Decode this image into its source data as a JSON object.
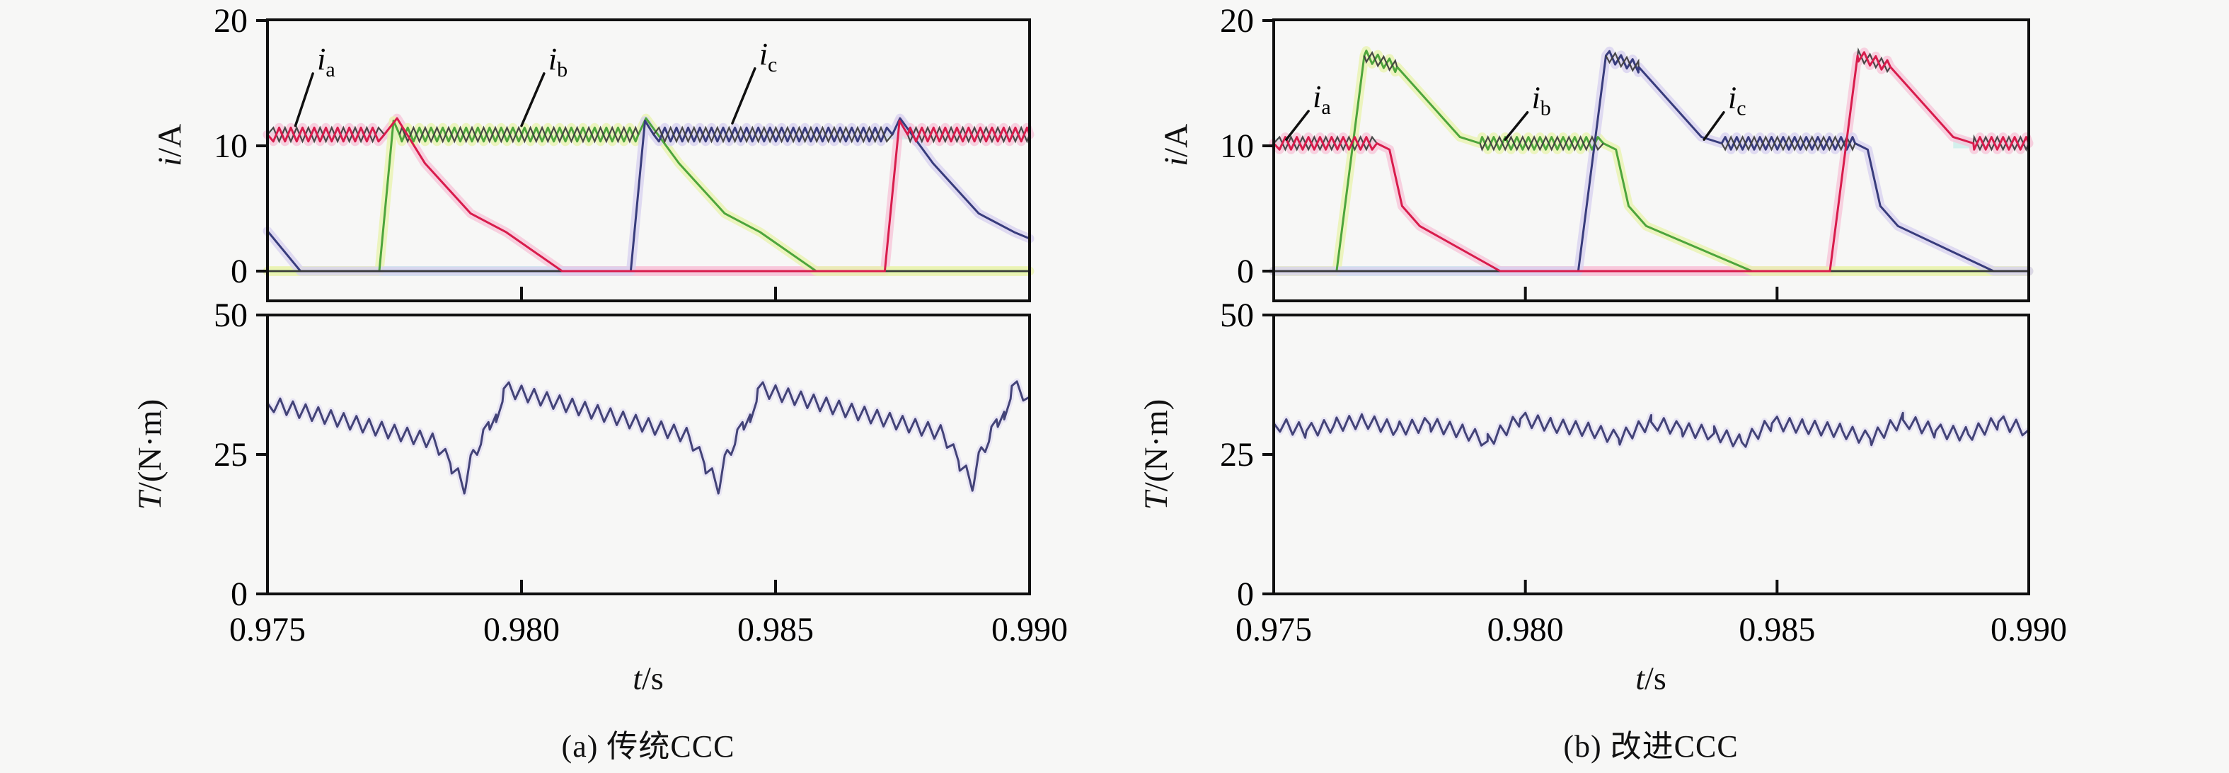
{
  "chart_data": {
    "type": "line",
    "xlim": [
      0.975,
      0.99
    ],
    "palette": {
      "red": "#d81c4c",
      "green": "#4da53c",
      "navy": "#383c7c",
      "torque": "#434378",
      "twin": "#3e3e3e",
      "zero": "#3b3b3b",
      "cyan": "#cdeeea",
      "yellow": "#eef3b8",
      "pink": "#f8c9dc",
      "lavender": "#dcd6f2",
      "halo_red": "#f6c6da",
      "halo_green": "#e9f2b0",
      "halo_navy": "#d8d2f0"
    },
    "panels": [
      {
        "caption": "(a) 传统CCC",
        "xlabel": {
          "var": "t",
          "unit": "/s"
        },
        "xticks": {
          "values": [
            0.975,
            0.98,
            0.985,
            0.99
          ],
          "labels": [
            "0.975",
            "0.980",
            "0.985",
            "0.990"
          ]
        },
        "current_plot": {
          "ylabel": {
            "var": "i",
            "unit": "/A"
          },
          "ylim": [
            -2.4,
            20.1
          ],
          "yticks": [
            {
              "v": 0,
              "label": "0"
            },
            {
              "v": 10,
              "label": "10"
            },
            {
              "v": 20,
              "label": "20"
            }
          ],
          "ripple_period": 0.00023,
          "bands": [
            {
              "t0": 0.975,
              "t1": 0.978,
              "level": 10.9,
              "color": "cyan"
            },
            {
              "t0": 0.9871,
              "t1": 0.99,
              "level": 10.9,
              "color": "cyan"
            },
            {
              "t0": 0.9757,
              "t1": 0.98215,
              "level": 0,
              "color": "cyan"
            },
            {
              "t0": 0.9808,
              "t1": 0.98715,
              "level": 0,
              "color": "pink"
            },
            {
              "t0": 0.975,
              "t1": 0.9772,
              "level": 0,
              "color": "yellow"
            },
            {
              "t0": 0.9858,
              "t1": 0.99,
              "level": 0,
              "color": "yellow"
            }
          ],
          "phases": [
            {
              "name": "ia",
              "color": "red",
              "front": true,
              "label": {
                "var": "i",
                "sub": "a",
                "tx": 0.9762,
                "ty": 16.9,
                "ax": 0.97555,
                "ay": 11.6
              },
              "points": [
                [
                  0.975,
                  10.9
                ],
                [
                  0.9773,
                  10.9
                ],
                [
                  0.97755,
                  12.2
                ],
                [
                  0.9781,
                  8.6
                ],
                [
                  0.979,
                  4.6
                ],
                [
                  0.9797,
                  3.1
                ],
                [
                  0.9808,
                  0
                ],
                [
                  0.98715,
                  0
                ],
                [
                  0.98744,
                  12.0
                ],
                [
                  0.9876,
                  10.9
                ],
                [
                  0.99,
                  10.9
                ]
              ],
              "ripple_spans": [
                [
                  0.975,
                  0.9773,
                  0.55
                ],
                [
                  0.9876,
                  0.99,
                  0.55
                ]
              ]
            },
            {
              "name": "ib",
              "color": "green",
              "label": {
                "var": "i",
                "sub": "b",
                "tx": 0.98075,
                "ty": 16.9,
                "ax": 0.98,
                "ay": 11.6
              },
              "points": [
                [
                  0.975,
                  0
                ],
                [
                  0.9772,
                  0
                ],
                [
                  0.97748,
                  12.0
                ],
                [
                  0.9776,
                  10.9
                ],
                [
                  0.9823,
                  10.9
                ],
                [
                  0.98245,
                  12.2
                ],
                [
                  0.9831,
                  8.6
                ],
                [
                  0.984,
                  4.6
                ],
                [
                  0.9847,
                  3.1
                ],
                [
                  0.9858,
                  0
                ],
                [
                  0.99,
                  0
                ]
              ],
              "ripple_spans": [
                [
                  0.9776,
                  0.9823,
                  0.55
                ]
              ]
            },
            {
              "name": "ic",
              "color": "navy",
              "label": {
                "var": "i",
                "sub": "c",
                "tx": 0.9849,
                "ty": 17.3,
                "ax": 0.98415,
                "ay": 11.8
              },
              "points": [
                [
                  0.975,
                  3.2
                ],
                [
                  0.97565,
                  0
                ],
                [
                  0.98215,
                  0
                ],
                [
                  0.98243,
                  12.0
                ],
                [
                  0.9826,
                  10.9
                ],
                [
                  0.9873,
                  10.9
                ],
                [
                  0.98745,
                  12.2
                ],
                [
                  0.9881,
                  8.6
                ],
                [
                  0.989,
                  4.6
                ],
                [
                  0.9897,
                  3.1
                ],
                [
                  0.99,
                  2.6
                ]
              ],
              "ripple_spans": [
                [
                  0.9826,
                  0.9873,
                  0.55
                ]
              ]
            }
          ]
        },
        "torque_plot": {
          "ylabel": {
            "var": "T",
            "unit": "/(N·m)"
          },
          "ylim": [
            0,
            50
          ],
          "yticks": [
            {
              "v": 0,
              "label": "0"
            },
            {
              "v": 25,
              "label": "25"
            },
            {
              "v": 50,
              "label": "50"
            }
          ],
          "color": "torque",
          "halo": "lavender",
          "ripple_period": 0.00025,
          "points": [
            [
              0.975,
              34.2
            ],
            [
              0.9783,
              27.3
            ],
            [
              0.9786,
              23.3
            ],
            [
              0.9789,
              19.0
            ],
            [
              0.97905,
              25.8
            ],
            [
              0.9792,
              26.8
            ],
            [
              0.97935,
              30.8
            ],
            [
              0.9795,
              30.8
            ],
            [
              0.97965,
              36.8
            ],
            [
              0.9833,
              28.3
            ],
            [
              0.9836,
              23.3
            ],
            [
              0.9839,
              19.0
            ],
            [
              0.98405,
              25.8
            ],
            [
              0.9842,
              26.8
            ],
            [
              0.98435,
              30.8
            ],
            [
              0.9845,
              30.8
            ],
            [
              0.98465,
              36.8
            ],
            [
              0.9883,
              28.8
            ],
            [
              0.9886,
              23.8
            ],
            [
              0.9889,
              19.5
            ],
            [
              0.98905,
              26.3
            ],
            [
              0.9892,
              27.3
            ],
            [
              0.98935,
              31.3
            ],
            [
              0.9895,
              31.3
            ],
            [
              0.98965,
              37.3
            ],
            [
              0.99,
              35.3
            ]
          ],
          "ripple_spans": [
            [
              0.975,
              0.99,
              1.35
            ]
          ]
        }
      },
      {
        "caption": "(b) 改进CCC",
        "xlabel": {
          "var": "t",
          "unit": "/s"
        },
        "xticks": {
          "values": [
            0.975,
            0.98,
            0.985,
            0.99
          ],
          "labels": [
            "0.975",
            "0.980",
            "0.985",
            "0.990"
          ]
        },
        "current_plot": {
          "ylabel": {
            "var": "i",
            "unit": "/A"
          },
          "ylim": [
            -2.4,
            20.1
          ],
          "yticks": [
            {
              "v": 0,
              "label": "0"
            },
            {
              "v": 10,
              "label": "10"
            },
            {
              "v": 20,
              "label": "20"
            }
          ],
          "ripple_period": 0.00023,
          "bands": [
            {
              "t0": 0.975,
              "t1": 0.977,
              "level": 10.2,
              "color": "cyan"
            },
            {
              "t0": 0.9885,
              "t1": 0.99,
              "level": 10.2,
              "color": "cyan"
            },
            {
              "t0": 0.975,
              "t1": 0.98105,
              "level": 0,
              "color": "cyan"
            },
            {
              "t0": 0.9893,
              "t1": 0.99,
              "level": 0,
              "color": "cyan"
            },
            {
              "t0": 0.9795,
              "t1": 0.98605,
              "level": 0,
              "color": "pink"
            },
            {
              "t0": 0.975,
              "t1": 0.97625,
              "level": 0,
              "color": "yellow"
            },
            {
              "t0": 0.9845,
              "t1": 0.99,
              "level": 0,
              "color": "yellow"
            }
          ],
          "phases": [
            {
              "name": "ia",
              "color": "red",
              "front": true,
              "label": {
                "var": "i",
                "sub": "a",
                "tx": 0.976,
                "ty": 13.9,
                "ax": 0.97525,
                "ay": 10.5
              },
              "points": [
                [
                  0.975,
                  10.2
                ],
                [
                  0.97705,
                  10.2
                ],
                [
                  0.9773,
                  9.7
                ],
                [
                  0.97755,
                  5.2
                ],
                [
                  0.9779,
                  3.6
                ],
                [
                  0.9795,
                  0
                ],
                [
                  0.98605,
                  0
                ],
                [
                  0.9866,
                  17.2
                ],
                [
                  0.98725,
                  16.3
                ],
                [
                  0.9885,
                  10.7
                ],
                [
                  0.9889,
                  10.2
                ],
                [
                  0.99,
                  10.2
                ]
              ],
              "ripple_spans": [
                [
                  0.975,
                  0.97705,
                  0.5
                ],
                [
                  0.9866,
                  0.98725,
                  0.45
                ],
                [
                  0.9889,
                  0.99,
                  0.5
                ]
              ]
            },
            {
              "name": "ib",
              "color": "green",
              "label": {
                "var": "i",
                "sub": "b",
                "tx": 0.98035,
                "ty": 13.8,
                "ax": 0.9796,
                "ay": 10.5
              },
              "points": [
                [
                  0.975,
                  0
                ],
                [
                  0.97625,
                  0
                ],
                [
                  0.9768,
                  17.2
                ],
                [
                  0.97745,
                  16.3
                ],
                [
                  0.9787,
                  10.7
                ],
                [
                  0.9791,
                  10.2
                ],
                [
                  0.98155,
                  10.2
                ],
                [
                  0.9818,
                  9.7
                ],
                [
                  0.98205,
                  5.2
                ],
                [
                  0.9824,
                  3.6
                ],
                [
                  0.9845,
                  0
                ],
                [
                  0.99,
                  0
                ]
              ],
              "ripple_spans": [
                [
                  0.9768,
                  0.97745,
                  0.45
                ],
                [
                  0.9791,
                  0.98155,
                  0.5
                ]
              ]
            },
            {
              "name": "ic",
              "color": "navy",
              "label": {
                "var": "i",
                "sub": "c",
                "tx": 0.98425,
                "ty": 13.8,
                "ax": 0.98355,
                "ay": 10.5
              },
              "points": [
                [
                  0.975,
                  0
                ],
                [
                  0.98105,
                  0
                ],
                [
                  0.9816,
                  17.2
                ],
                [
                  0.98225,
                  16.3
                ],
                [
                  0.9835,
                  10.7
                ],
                [
                  0.9839,
                  10.2
                ],
                [
                  0.98655,
                  10.2
                ],
                [
                  0.9868,
                  9.7
                ],
                [
                  0.98705,
                  5.2
                ],
                [
                  0.9874,
                  3.6
                ],
                [
                  0.9893,
                  0
                ],
                [
                  0.99,
                  0
                ]
              ],
              "ripple_spans": [
                [
                  0.9816,
                  0.98225,
                  0.45
                ],
                [
                  0.9839,
                  0.98655,
                  0.5
                ]
              ]
            }
          ]
        },
        "torque_plot": {
          "ylabel": {
            "var": "T",
            "unit": "/(N·m)"
          },
          "ylim": [
            0,
            50
          ],
          "yticks": [
            {
              "v": 0,
              "label": "0"
            },
            {
              "v": 25,
              "label": "25"
            },
            {
              "v": 50,
              "label": "50"
            }
          ],
          "color": "torque",
          "halo": "lavender",
          "ripple_period": 0.00025,
          "points": [
            [
              0.975,
              30.6
            ],
            [
              0.97565,
              29.2
            ],
            [
              0.9762,
              30.3
            ],
            [
              0.9768,
              31.0
            ],
            [
              0.97745,
              29.6
            ],
            [
              0.9781,
              30.4
            ],
            [
              0.9788,
              29.0
            ],
            [
              0.97925,
              27.4
            ],
            [
              0.9799,
              31.4
            ],
            [
              0.98055,
              30.2
            ],
            [
              0.9813,
              29.4
            ],
            [
              0.98185,
              27.9
            ],
            [
              0.9825,
              30.8
            ],
            [
              0.9831,
              29.5
            ],
            [
              0.98375,
              28.8
            ],
            [
              0.9843,
              27.2
            ],
            [
              0.9849,
              30.6
            ],
            [
              0.98555,
              30.0
            ],
            [
              0.9863,
              29.2
            ],
            [
              0.98685,
              27.8
            ],
            [
              0.9875,
              31.2
            ],
            [
              0.98815,
              29.2
            ],
            [
              0.9888,
              28.6
            ],
            [
              0.9894,
              30.8
            ],
            [
              0.99,
              29.4
            ]
          ],
          "ripple_spans": [
            [
              0.975,
              0.99,
              1.25
            ]
          ]
        }
      }
    ]
  }
}
